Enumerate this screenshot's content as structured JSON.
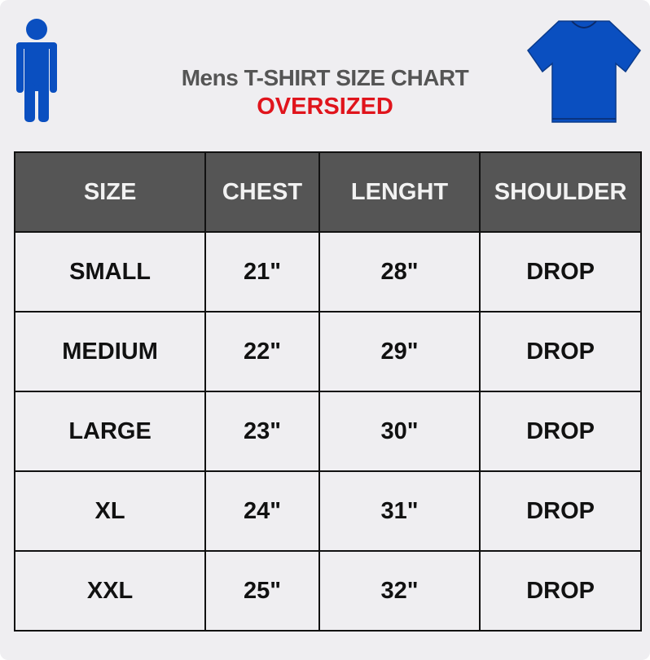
{
  "header": {
    "title": "Mens T-SHIRT SIZE CHART",
    "subtitle": "OVERSIZED"
  },
  "icons": {
    "left": "person-icon",
    "right": "tshirt-icon",
    "color": "#0a4fc0"
  },
  "colors": {
    "title": "#555555",
    "subtitle": "#e0141c",
    "table_header": "#555555"
  },
  "table": {
    "columns": [
      "SIZE",
      "CHEST",
      "LENGHT",
      "SHOULDER"
    ],
    "rows": [
      [
        "SMALL",
        "21\"",
        "28\"",
        "DROP"
      ],
      [
        "MEDIUM",
        "22\"",
        "29\"",
        "DROP"
      ],
      [
        "LARGE",
        "23\"",
        "30\"",
        "DROP"
      ],
      [
        "XL",
        "24\"",
        "31\"",
        "DROP"
      ],
      [
        "XXL",
        "25\"",
        "32\"",
        "DROP"
      ]
    ]
  }
}
